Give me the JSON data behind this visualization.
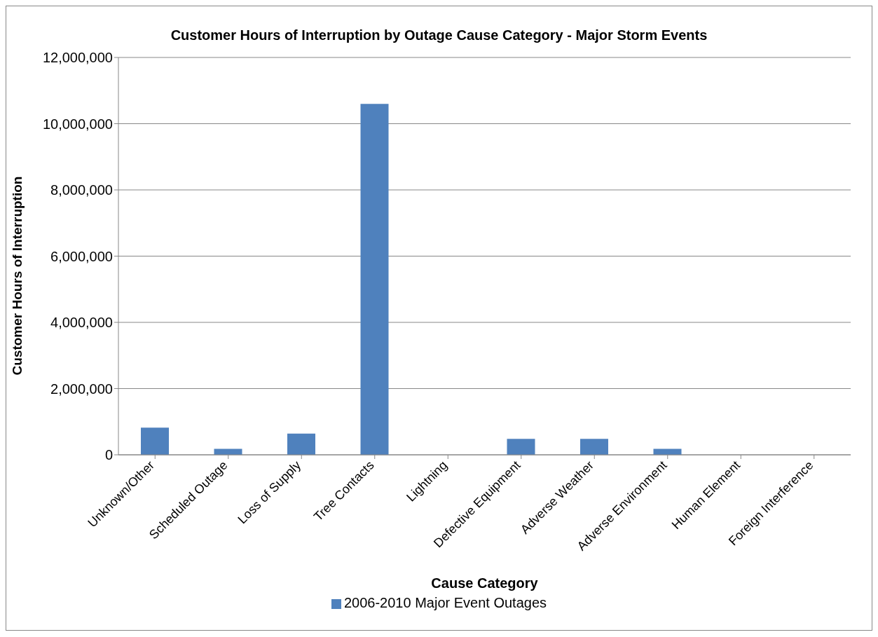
{
  "chart_data": {
    "type": "bar",
    "title": "Customer Hours of Interruption by Outage Cause Category - Major Storm Events",
    "xlabel": "Cause Category",
    "ylabel": "Customer Hours of Interruption",
    "categories": [
      "Unknown/Other",
      "Scheduled Outage",
      "Loss of Supply",
      "Tree Contacts",
      "Lightning",
      "Defective Equipment",
      "Adverse Weather",
      "Adverse Environment",
      "Human Element",
      "Foreign Interference"
    ],
    "series": [
      {
        "name": "2006-2010 Major Event Outages",
        "color": "#4f81bd",
        "values": [
          820000,
          180000,
          640000,
          10600000,
          0,
          480000,
          480000,
          180000,
          0,
          0
        ]
      }
    ],
    "ylim": [
      0,
      12000000
    ],
    "yticks": [
      0,
      {
        "value": 2000000,
        "label": "2,000,000"
      },
      {
        "value": 4000000,
        "label": "4,000,000"
      },
      {
        "value": 6000000,
        "label": "6,000,000"
      },
      {
        "value": 8000000,
        "label": "8,000,000"
      },
      {
        "value": 10000000,
        "label": "10,000,000"
      },
      {
        "value": 12000000,
        "label": "12,000,000"
      }
    ],
    "grid": "y",
    "legend": "bottom"
  }
}
